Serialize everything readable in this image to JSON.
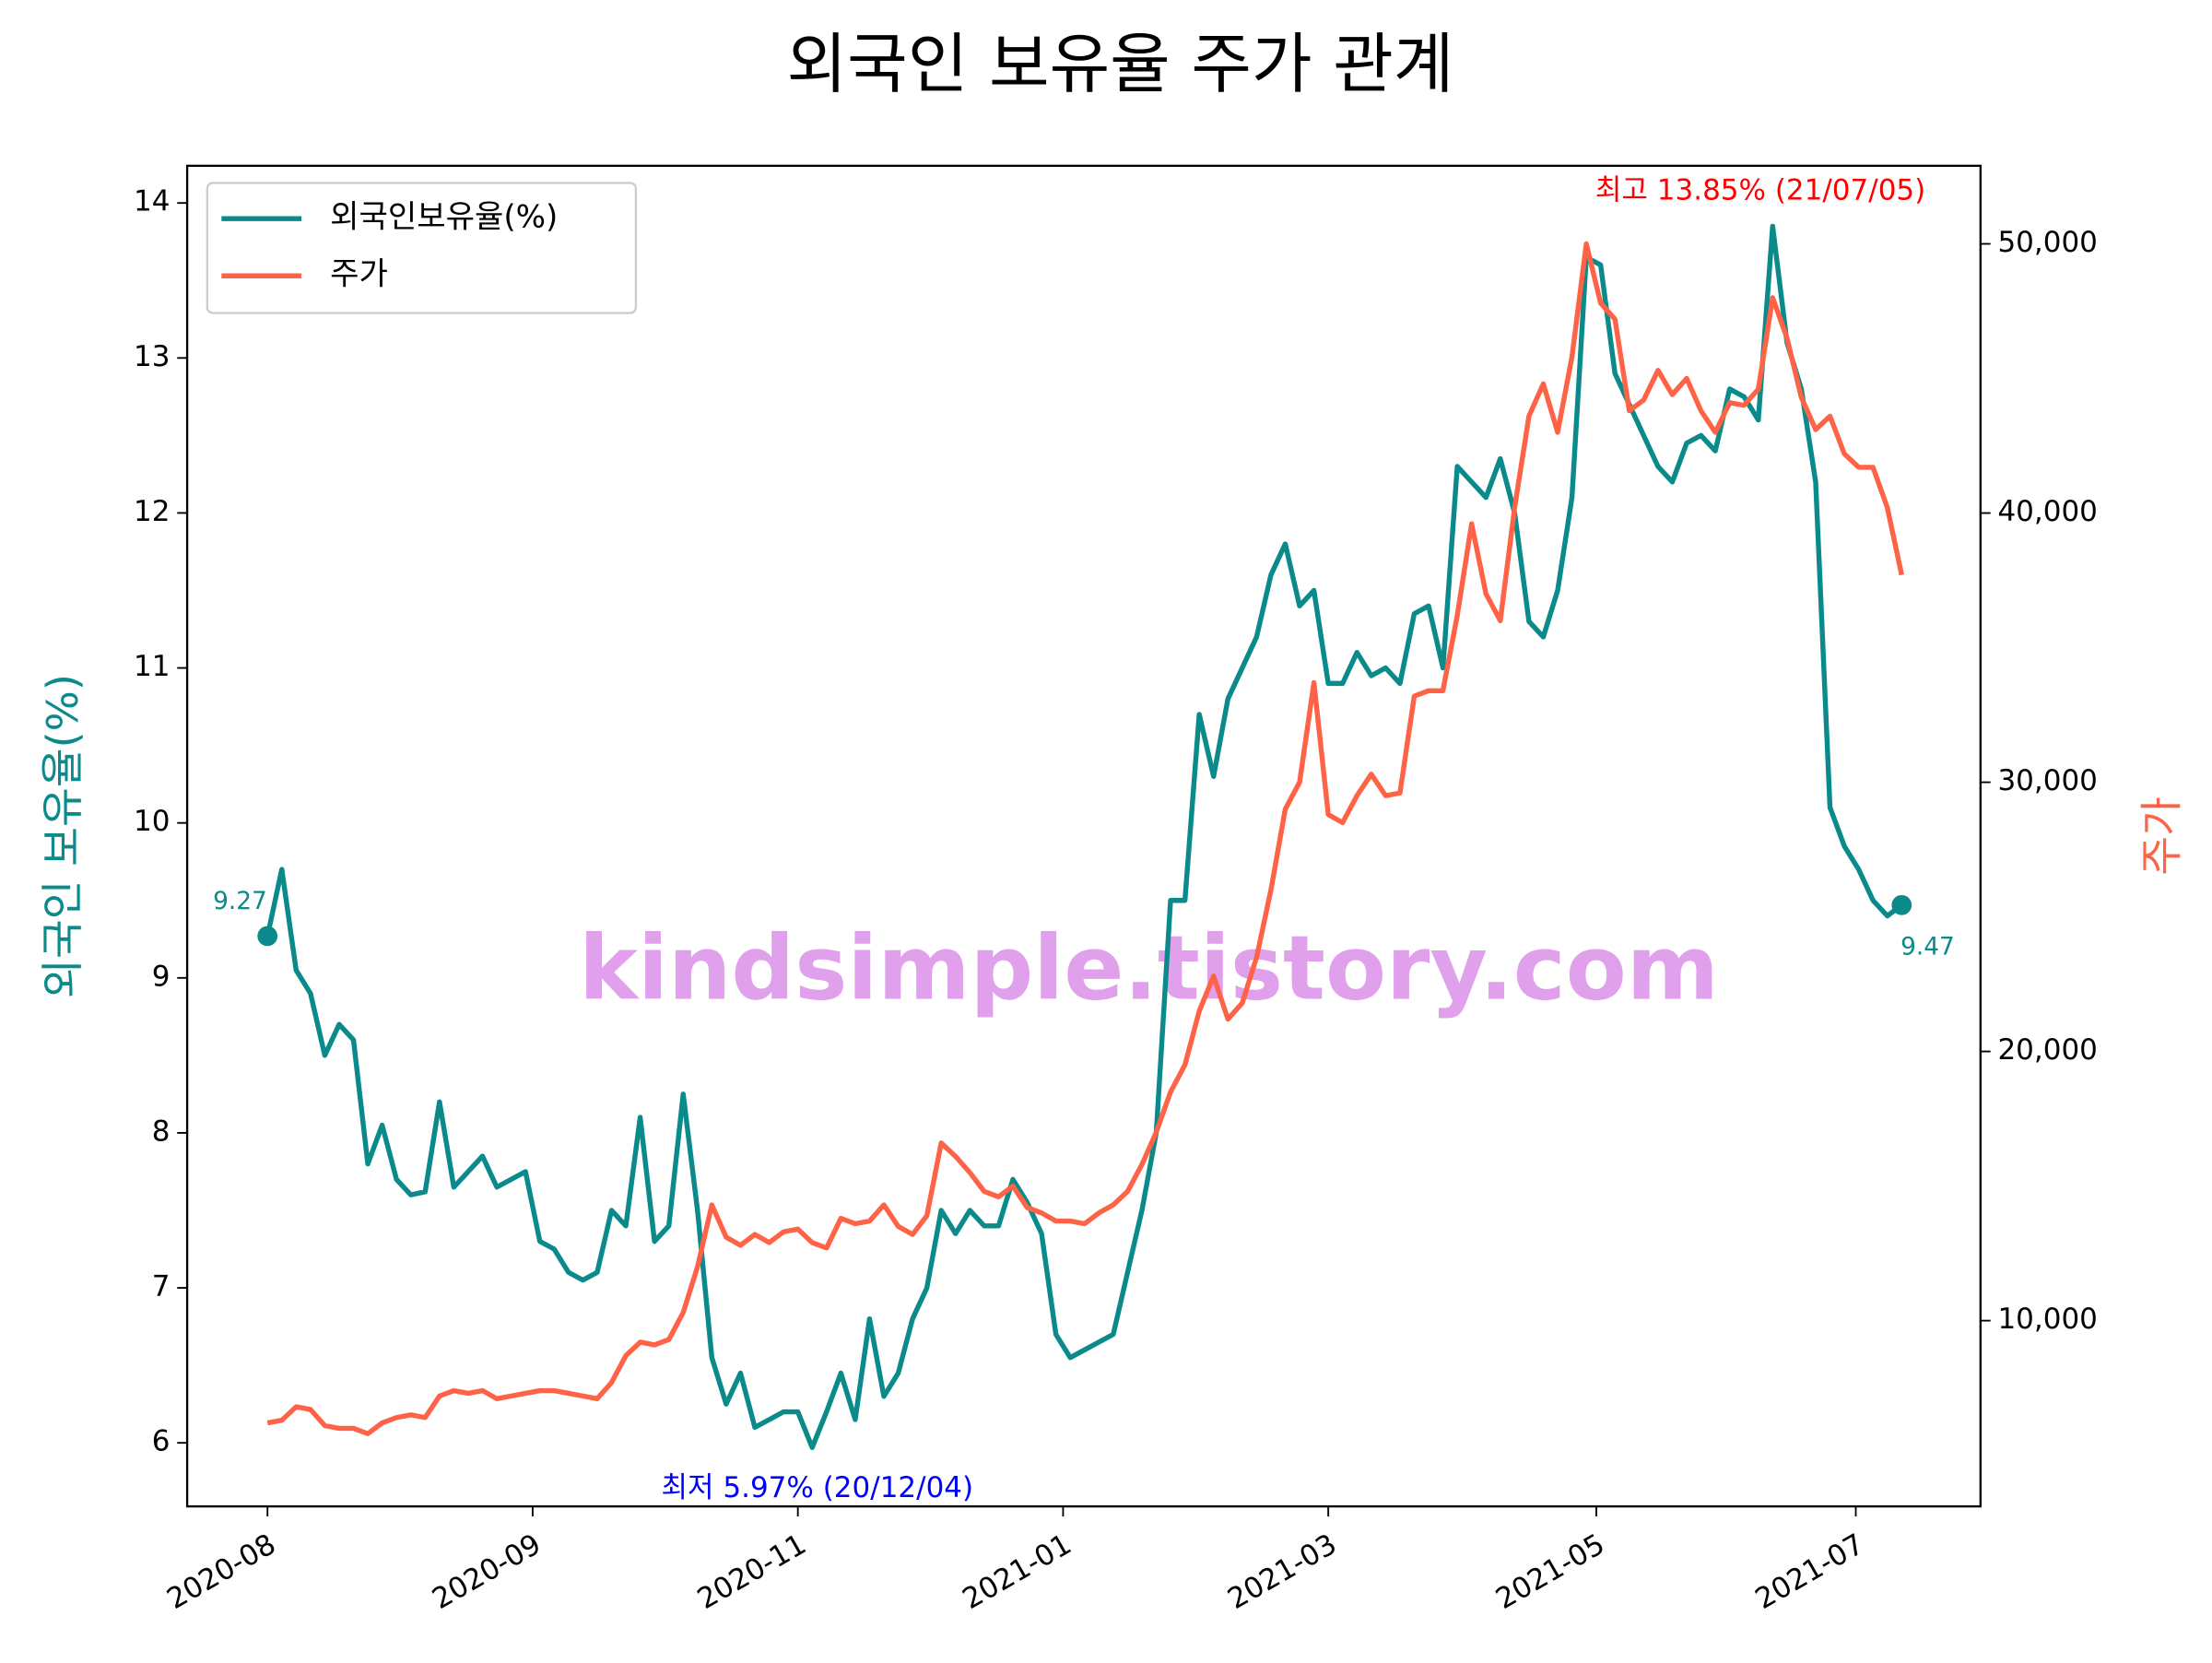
{
  "chart_data": {
    "type": "line",
    "title": "외국인 보유율 주가 관계",
    "ylabel": "외국인 보유율(%)",
    "y2label": "주가",
    "legend": "upper left",
    "watermark": "kindsimple.tistory.com",
    "xlim": [
      -5.6,
      119.5
    ],
    "xticks": [
      {
        "value": 0,
        "label": "2020-08"
      },
      {
        "value": 18.5,
        "label": "2020-09"
      },
      {
        "value": 37,
        "label": "2020-11"
      },
      {
        "value": 55.5,
        "label": "2021-01"
      },
      {
        "value": 74,
        "label": "2021-03"
      },
      {
        "value": 92.7,
        "label": "2021-05"
      },
      {
        "value": 110.8,
        "label": "2021-07"
      }
    ],
    "ylim": [
      5.59,
      14.24
    ],
    "yticks": [
      6,
      7,
      8,
      9,
      10,
      11,
      12,
      13,
      14
    ],
    "y2lim": [
      3100,
      52900
    ],
    "y2ticks": [
      {
        "value": 10000,
        "label": "10,000"
      },
      {
        "value": 20000,
        "label": "20,000"
      },
      {
        "value": 30000,
        "label": "30,000"
      },
      {
        "value": 40000,
        "label": "40,000"
      },
      {
        "value": 50000,
        "label": "50,000"
      }
    ],
    "x": [
      0,
      1,
      2,
      3,
      4,
      5,
      6,
      7,
      8,
      9,
      10,
      11,
      12,
      13,
      14,
      15,
      16,
      17,
      18,
      19,
      20,
      21,
      22,
      23,
      24,
      25,
      26,
      27,
      28,
      29,
      30,
      31,
      32,
      33,
      34,
      35,
      36,
      37,
      38,
      39,
      40,
      41,
      42,
      43,
      44,
      45,
      46,
      47,
      48,
      49,
      50,
      51,
      52,
      53,
      54,
      55,
      56,
      57,
      58,
      59,
      60,
      61,
      62,
      63,
      64,
      65,
      66,
      67,
      68,
      69,
      70,
      71,
      72,
      73,
      74,
      75,
      76,
      77,
      78,
      79,
      80,
      81,
      82,
      83,
      84,
      85,
      86,
      87,
      88,
      89,
      90,
      91,
      92,
      93,
      94,
      95,
      96,
      97,
      98,
      99,
      100,
      101,
      102,
      103,
      104,
      105,
      106,
      107,
      108,
      109,
      110,
      111,
      112,
      113,
      114
    ],
    "series": [
      {
        "name": "외국인보유율(%)",
        "color": "#0a8a8a",
        "values": [
          9.27,
          9.7,
          9.05,
          8.9,
          8.5,
          8.7,
          8.6,
          7.8,
          8.05,
          7.7,
          7.6,
          7.62,
          8.2,
          7.65,
          7.75,
          7.85,
          7.65,
          7.7,
          7.75,
          7.3,
          7.25,
          7.1,
          7.05,
          7.1,
          7.5,
          7.4,
          8.1,
          7.3,
          7.4,
          8.25,
          7.5,
          6.55,
          6.25,
          6.45,
          6.1,
          6.15,
          6.2,
          6.2,
          5.97,
          6.2,
          6.45,
          6.15,
          6.8,
          6.3,
          6.45,
          6.8,
          7.0,
          7.5,
          7.35,
          7.5,
          7.4,
          7.4,
          7.7,
          7.55,
          7.35,
          6.7,
          6.55,
          6.6,
          6.65,
          6.7,
          7.1,
          7.5,
          8.0,
          9.5,
          9.5,
          10.7,
          10.3,
          10.8,
          11.0,
          11.2,
          11.6,
          11.8,
          11.4,
          11.5,
          10.9,
          10.9,
          11.1,
          10.95,
          11.0,
          10.9,
          11.35,
          11.4,
          11.0,
          12.3,
          12.2,
          12.1,
          12.35,
          12.0,
          11.3,
          11.2,
          11.5,
          12.1,
          13.65,
          13.6,
          12.9,
          12.7,
          12.5,
          12.3,
          12.2,
          12.45,
          12.5,
          12.4,
          12.8,
          12.75,
          12.6,
          13.85,
          13.1,
          12.8,
          12.2,
          10.1,
          9.85,
          9.7,
          9.5,
          9.4,
          9.47
        ]
      },
      {
        "name": "주가",
        "color": "#ff6347",
        "axis": "y2",
        "values": [
          6200,
          6300,
          6800,
          6700,
          6100,
          6000,
          6000,
          5800,
          6200,
          6400,
          6500,
          6400,
          7200,
          7400,
          7300,
          7400,
          7100,
          7200,
          7300,
          7400,
          7400,
          7300,
          7200,
          7100,
          7700,
          8700,
          9200,
          9100,
          9300,
          10300,
          12000,
          14300,
          13100,
          12800,
          13200,
          12900,
          13300,
          13400,
          12900,
          12700,
          13800,
          13600,
          13700,
          14300,
          13500,
          13200,
          13900,
          16600,
          16100,
          15500,
          14800,
          14600,
          15000,
          14200,
          14000,
          13700,
          13700,
          13600,
          14000,
          14300,
          14800,
          15800,
          17000,
          18500,
          19500,
          21500,
          22800,
          21200,
          21800,
          23500,
          26000,
          29000,
          30000,
          33700,
          28800,
          28500,
          29500,
          30300,
          29500,
          29600,
          33200,
          33400,
          33400,
          36200,
          39600,
          37000,
          36000,
          40200,
          43600,
          44800,
          43000,
          45800,
          50000,
          47800,
          47200,
          43800,
          44200,
          45300,
          44400,
          45000,
          43800,
          43000,
          44100,
          44000,
          44600,
          48000,
          46500,
          44300,
          43100,
          43600,
          42200,
          41700,
          41700,
          40200,
          37700
        ]
      }
    ],
    "annotations": [
      {
        "text": "최고 13.85% (21/07/05)",
        "color": "#ff0000"
      },
      {
        "text": "최저 5.97% (20/12/04)",
        "color": "#0000ff"
      },
      {
        "text": "9.27",
        "color": "#0a8a8a"
      },
      {
        "text": "9.47",
        "color": "#0a8a8a"
      }
    ]
  }
}
